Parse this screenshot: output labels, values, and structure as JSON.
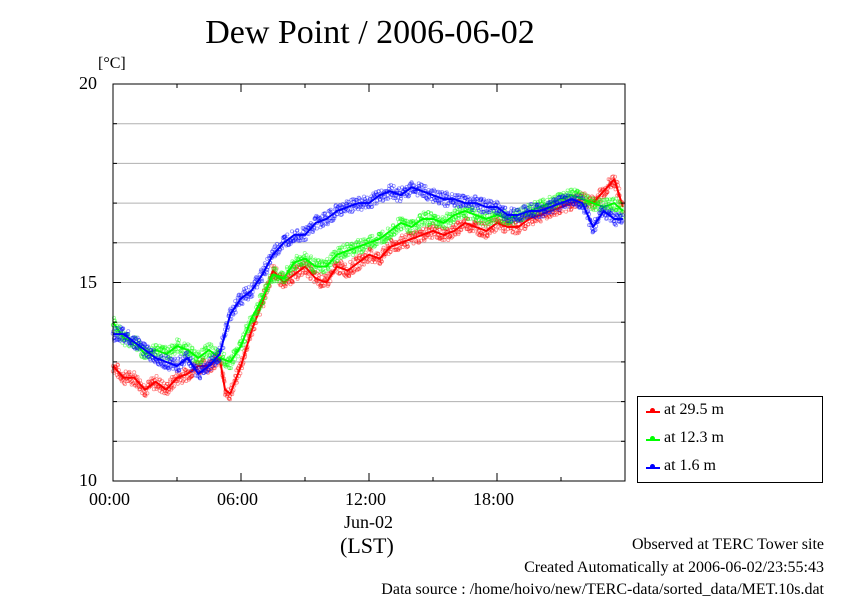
{
  "chart_data": {
    "type": "line",
    "title": "Dew Point / 2006-06-02",
    "yunit": "[°C]",
    "ylim": [
      10,
      20
    ],
    "yticks": [
      "10",
      "15",
      "20"
    ],
    "xlim": [
      0,
      24
    ],
    "xticks": [
      {
        "h": 0,
        "label": "00:00"
      },
      {
        "h": 6,
        "label": "06:00"
      },
      {
        "h": 12,
        "label": "12:00"
      },
      {
        "h": 18,
        "label": "18:00"
      }
    ],
    "xlabel_date": "Jun-02",
    "xlabel": "(LST)",
    "grid": true,
    "legend_position": "right-bottom",
    "series": [
      {
        "name": "at 29.5 m",
        "color": "#ff0000",
        "x": [
          0,
          0.5,
          1,
          1.5,
          2,
          2.5,
          3,
          3.5,
          4,
          4.5,
          5,
          5.25,
          5.5,
          6,
          6.5,
          7,
          7.5,
          8,
          8.5,
          9,
          9.5,
          10,
          10.5,
          11,
          11.5,
          12,
          12.5,
          13,
          13.5,
          14,
          14.5,
          15,
          15.5,
          16,
          16.5,
          17,
          17.5,
          18,
          18.5,
          19,
          19.5,
          20,
          20.5,
          21,
          21.5,
          22,
          22.5,
          23,
          23.5,
          23.9
        ],
        "y": [
          12.9,
          12.6,
          12.6,
          12.3,
          12.5,
          12.3,
          12.6,
          12.7,
          12.9,
          12.9,
          13.1,
          12.3,
          12.2,
          12.9,
          13.8,
          14.5,
          15.3,
          15.0,
          15.2,
          15.4,
          15.1,
          15.0,
          15.4,
          15.3,
          15.5,
          15.7,
          15.6,
          15.9,
          16.0,
          16.1,
          16.2,
          16.3,
          16.2,
          16.3,
          16.5,
          16.4,
          16.3,
          16.5,
          16.4,
          16.4,
          16.6,
          16.7,
          16.8,
          16.9,
          17.0,
          17.1,
          17.0,
          17.3,
          17.6,
          16.9
        ]
      },
      {
        "name": "at 12.3 m",
        "color": "#00ff00",
        "x": [
          0,
          0.5,
          1,
          1.5,
          2,
          2.5,
          3,
          3.5,
          4,
          4.5,
          5,
          5.5,
          6,
          6.5,
          7,
          7.5,
          8,
          8.5,
          9,
          9.5,
          10,
          10.5,
          11,
          11.5,
          12,
          12.5,
          13,
          13.5,
          14,
          14.5,
          15,
          15.5,
          16,
          16.5,
          17,
          17.5,
          18,
          18.5,
          19,
          19.5,
          20,
          20.5,
          21,
          21.5,
          22,
          22.5,
          23,
          23.5,
          23.9
        ],
        "y": [
          14.0,
          13.6,
          13.5,
          13.2,
          13.3,
          13.2,
          13.4,
          13.3,
          13.1,
          13.3,
          13.1,
          13.0,
          13.4,
          14.1,
          14.6,
          15.2,
          15.1,
          15.5,
          15.6,
          15.4,
          15.4,
          15.7,
          15.8,
          15.9,
          16.0,
          16.1,
          16.3,
          16.5,
          16.4,
          16.6,
          16.6,
          16.5,
          16.7,
          16.8,
          16.7,
          16.6,
          16.7,
          16.6,
          16.7,
          16.8,
          16.9,
          17.0,
          17.1,
          17.2,
          17.1,
          17.0,
          16.9,
          17.0,
          16.8
        ]
      },
      {
        "name": "at 1.6 m",
        "color": "#0000ff",
        "x": [
          0,
          0.5,
          1,
          1.5,
          2,
          2.5,
          3,
          3.5,
          4,
          4.5,
          5,
          5.5,
          6,
          6.5,
          7,
          7.5,
          8,
          8.5,
          9,
          9.5,
          10,
          10.5,
          11,
          11.5,
          12,
          12.5,
          13,
          13.5,
          14,
          14.5,
          15,
          15.5,
          16,
          16.5,
          17,
          17.5,
          18,
          18.5,
          19,
          19.5,
          20,
          20.5,
          21,
          21.5,
          22,
          22.5,
          23,
          23.5,
          23.9
        ],
        "y": [
          13.7,
          13.7,
          13.5,
          13.3,
          13.1,
          13.0,
          12.9,
          13.1,
          12.7,
          12.9,
          13.2,
          14.2,
          14.6,
          14.8,
          15.2,
          15.7,
          16.0,
          16.2,
          16.2,
          16.5,
          16.6,
          16.8,
          16.9,
          17.0,
          17.0,
          17.2,
          17.3,
          17.2,
          17.4,
          17.3,
          17.2,
          17.1,
          17.1,
          17.0,
          17.0,
          16.9,
          16.9,
          16.7,
          16.7,
          16.8,
          16.8,
          16.9,
          17.0,
          17.1,
          17.0,
          16.4,
          16.8,
          16.6,
          16.6
        ]
      }
    ]
  },
  "footer": {
    "line1": "Observed at TERC Tower site",
    "line2": "Created Automatically at 2006-06-02/23:55:43",
    "line3": "Data source : /home/hoivo/new/TERC-data/sorted_data/MET.10s.dat"
  }
}
